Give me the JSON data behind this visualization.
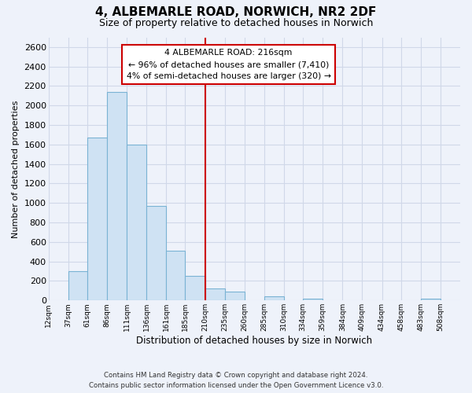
{
  "title": "4, ALBEMARLE ROAD, NORWICH, NR2 2DF",
  "subtitle": "Size of property relative to detached houses in Norwich",
  "xlabel": "Distribution of detached houses by size in Norwich",
  "ylabel": "Number of detached properties",
  "bar_left_edges": [
    12,
    37,
    61,
    86,
    111,
    136,
    161,
    185,
    210,
    235,
    260,
    285,
    310,
    334,
    359,
    384,
    409,
    434,
    458,
    483
  ],
  "bar_heights": [
    0,
    300,
    1670,
    2140,
    1600,
    970,
    510,
    255,
    120,
    95,
    0,
    40,
    0,
    20,
    0,
    0,
    0,
    0,
    0,
    20
  ],
  "bar_widths": [
    25,
    24,
    25,
    25,
    25,
    25,
    24,
    25,
    25,
    25,
    25,
    25,
    24,
    25,
    25,
    25,
    25,
    24,
    25,
    25
  ],
  "bar_color": "#cfe2f3",
  "bar_edge_color": "#7ab3d4",
  "marker_x": 210,
  "marker_color": "#cc0000",
  "xlim": [
    12,
    533
  ],
  "ylim": [
    0,
    2700
  ],
  "yticks": [
    0,
    200,
    400,
    600,
    800,
    1000,
    1200,
    1400,
    1600,
    1800,
    2000,
    2200,
    2400,
    2600
  ],
  "xtick_labels": [
    "12sqm",
    "37sqm",
    "61sqm",
    "86sqm",
    "111sqm",
    "136sqm",
    "161sqm",
    "185sqm",
    "210sqm",
    "235sqm",
    "260sqm",
    "285sqm",
    "310sqm",
    "334sqm",
    "359sqm",
    "384sqm",
    "409sqm",
    "434sqm",
    "458sqm",
    "483sqm",
    "508sqm"
  ],
  "xtick_positions": [
    12,
    37,
    61,
    86,
    111,
    136,
    161,
    185,
    210,
    235,
    260,
    285,
    310,
    334,
    359,
    384,
    409,
    434,
    458,
    483,
    508
  ],
  "annotation_title": "4 ALBEMARLE ROAD: 216sqm",
  "annotation_line1": "← 96% of detached houses are smaller (7,410)",
  "annotation_line2": "4% of semi-detached houses are larger (320) →",
  "annotation_box_color": "#ffffff",
  "annotation_box_edge": "#cc0000",
  "footer_line1": "Contains HM Land Registry data © Crown copyright and database right 2024.",
  "footer_line2": "Contains public sector information licensed under the Open Government Licence v3.0.",
  "grid_color": "#d0d8e8",
  "background_color": "#eef2fa"
}
